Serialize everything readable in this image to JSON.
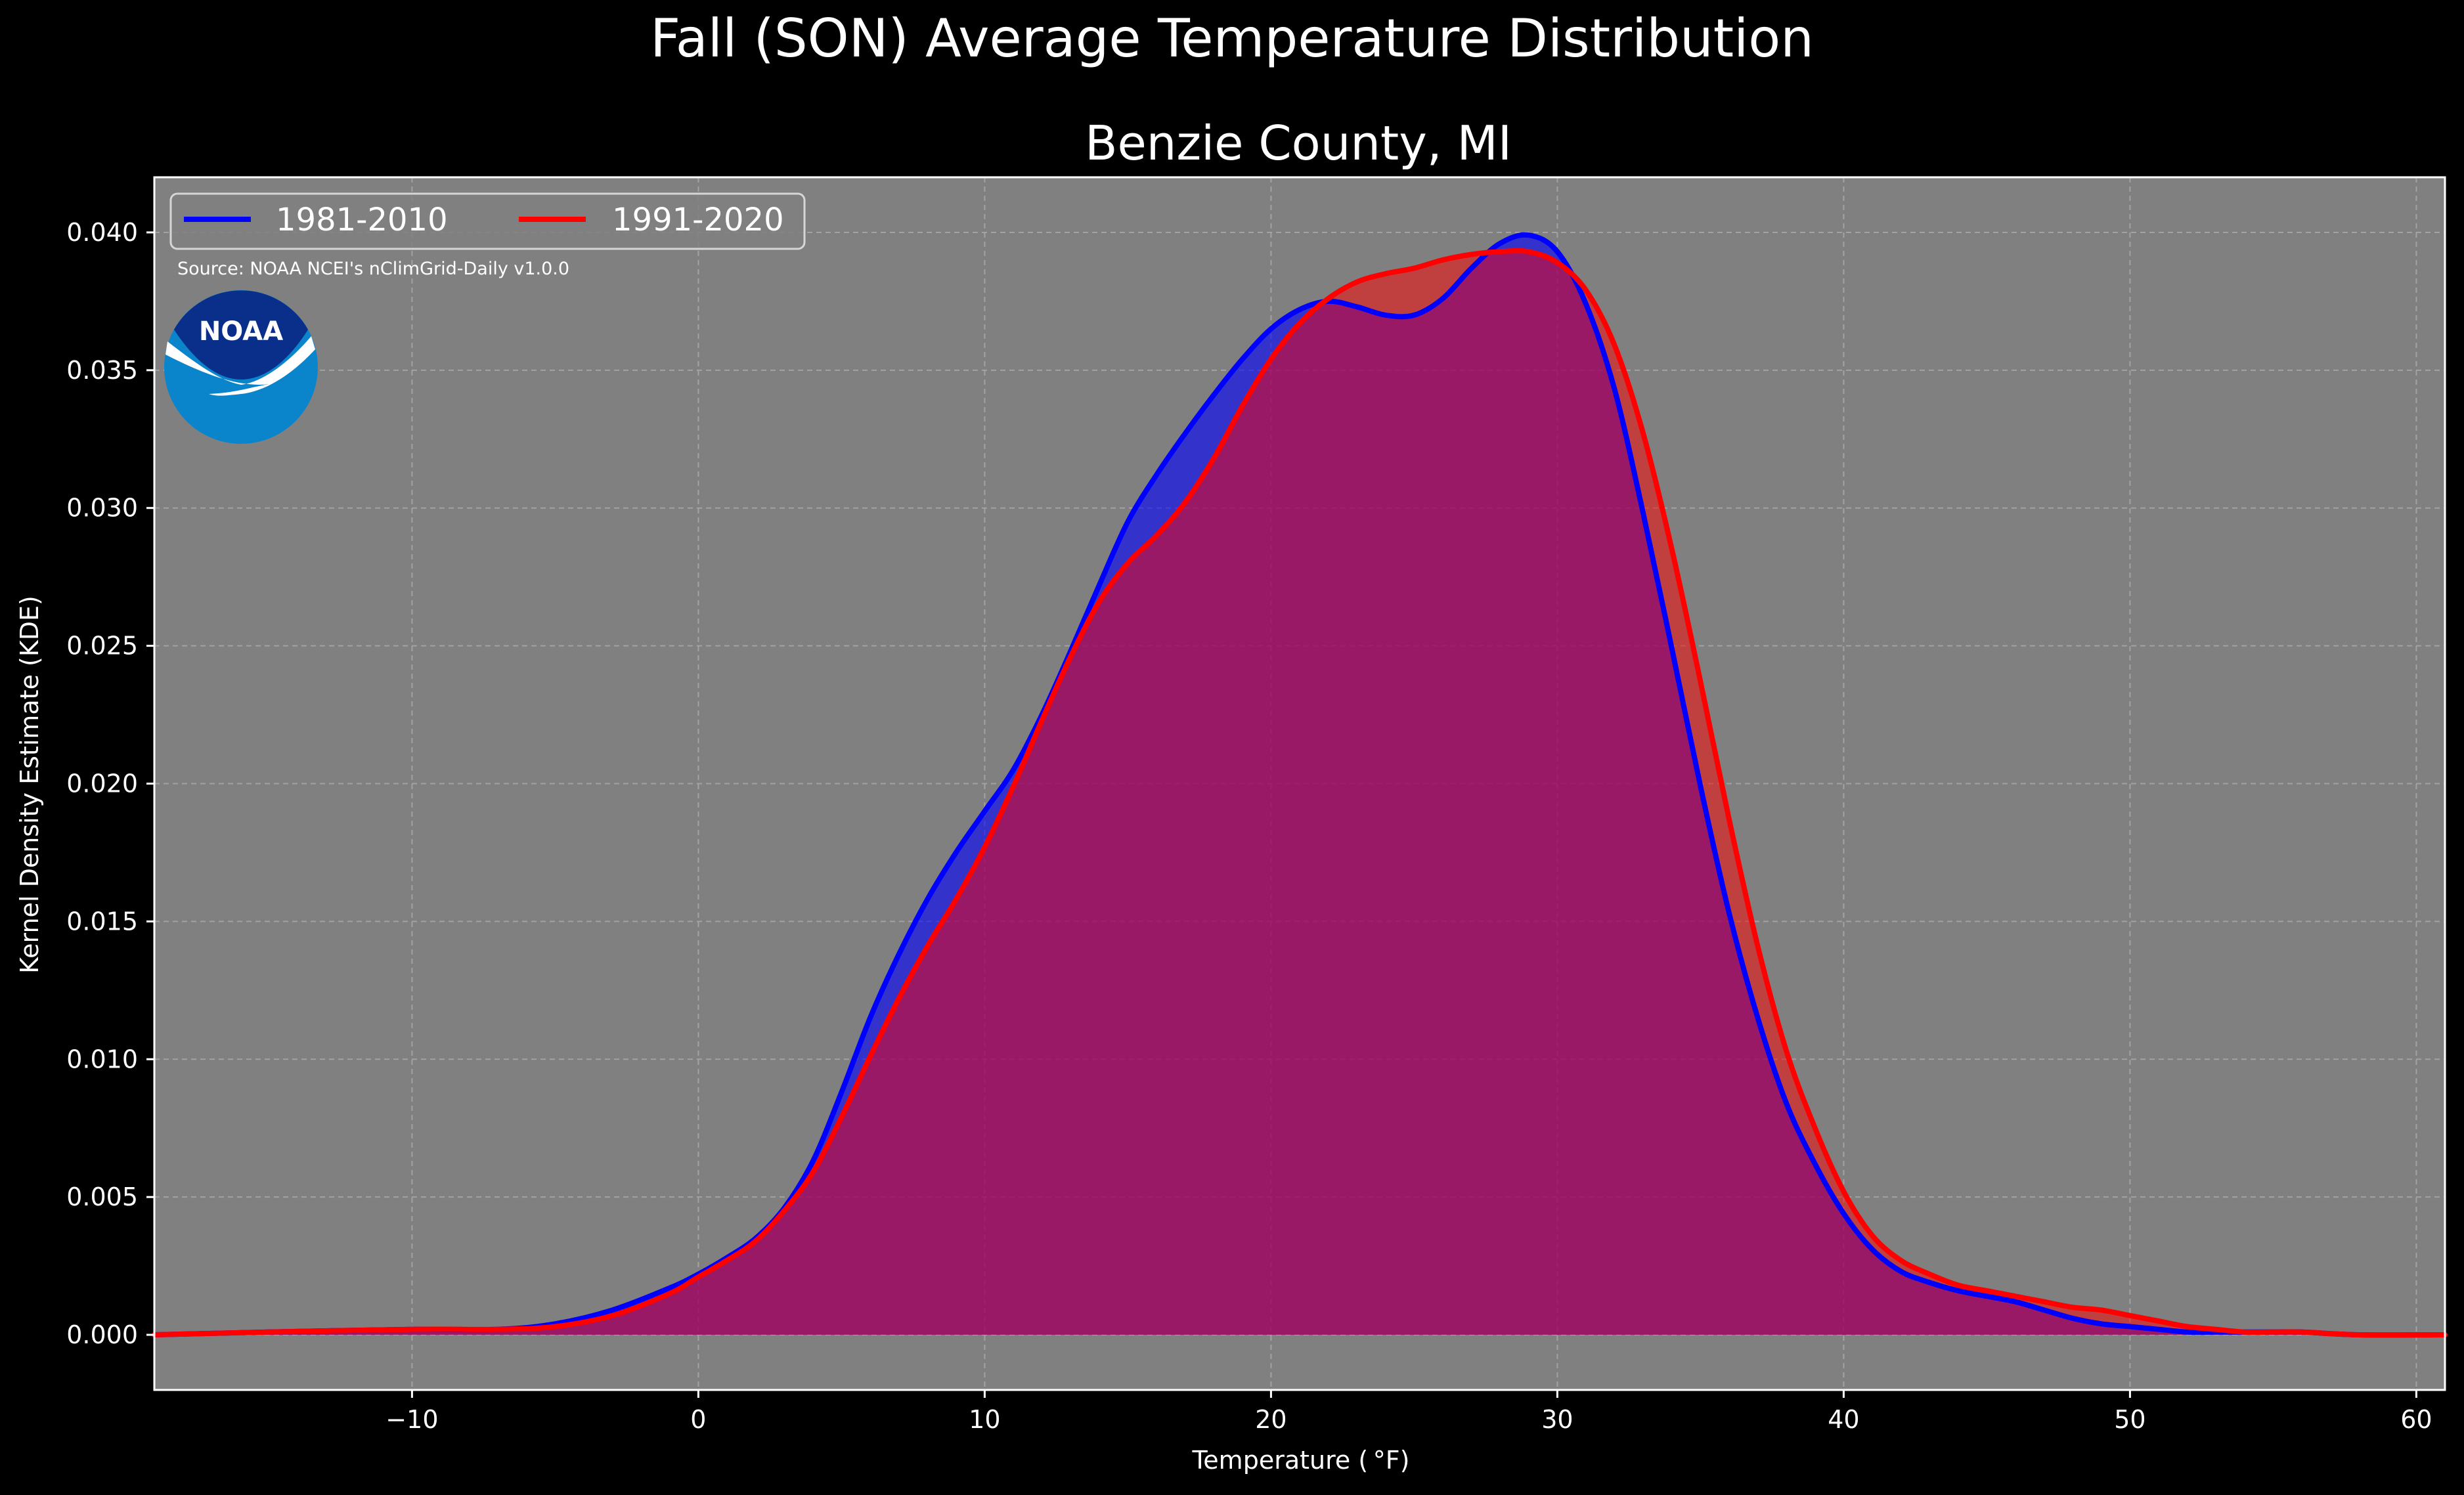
{
  "chart_data": {
    "type": "area",
    "suptitle": "Fall (SON) Average Temperature Distribution",
    "title": "Benzie County, MI",
    "xlabel": "Temperature ($^\\circ$F)",
    "xlabel_display": "Temperature ( °F)",
    "ylabel": "Kernel Density Estimate (KDE)",
    "xlim": [
      -19,
      61
    ],
    "ylim": [
      -0.002,
      0.042
    ],
    "x_ticks": [
      -10,
      0,
      10,
      20,
      30,
      40,
      50,
      60
    ],
    "x_tick_labels": [
      "−10",
      "0",
      "10",
      "20",
      "30",
      "40",
      "50",
      "60"
    ],
    "y_ticks": [
      0.0,
      0.005,
      0.01,
      0.015,
      0.02,
      0.025,
      0.03,
      0.035,
      0.04
    ],
    "y_tick_labels": [
      "0.000",
      "0.005",
      "0.010",
      "0.015",
      "0.020",
      "0.025",
      "0.030",
      "0.035",
      "0.040"
    ],
    "grid": true,
    "legend_position": "top-left",
    "source_note": "Source: NOAA NCEI's nClimGrid-Daily v1.0.0",
    "logo_text": "NOAA",
    "colors": {
      "figure_background": "#000000",
      "plot_background": "#808080",
      "series_1981_2010": "#0000ff",
      "series_1991_2020": "#ff0000",
      "overlap_fill": "#9e1f5f",
      "noaa_dark_blue": "#0a2f8a",
      "noaa_light_blue": "#0a85cc"
    },
    "series": [
      {
        "name": "1981-2010",
        "color": "#0000ff",
        "x": [
          -19,
          -15,
          -10,
          -7,
          -5,
          -3,
          -1,
          0,
          1,
          2,
          3,
          4,
          5,
          6,
          7,
          8,
          9,
          10,
          11,
          12,
          13,
          14,
          15,
          16,
          17,
          18,
          19,
          20,
          21,
          22,
          23,
          24,
          25,
          26,
          27,
          28,
          29,
          30,
          31,
          32,
          33,
          34,
          35,
          36,
          37,
          38,
          39,
          40,
          41,
          42,
          43,
          44,
          45,
          46,
          47,
          48,
          49,
          50,
          51,
          52,
          53,
          54,
          55,
          56,
          58,
          61
        ],
        "y": [
          0.0,
          0.0001,
          0.0002,
          0.0002,
          0.0004,
          0.0009,
          0.0017,
          0.0022,
          0.0028,
          0.0035,
          0.0046,
          0.0063,
          0.0088,
          0.0115,
          0.0138,
          0.0158,
          0.0175,
          0.019,
          0.0205,
          0.0225,
          0.0248,
          0.0272,
          0.0295,
          0.0312,
          0.0327,
          0.0341,
          0.0354,
          0.0365,
          0.0372,
          0.0375,
          0.0373,
          0.037,
          0.037,
          0.0376,
          0.0387,
          0.0396,
          0.0399,
          0.0393,
          0.0374,
          0.0343,
          0.0298,
          0.0249,
          0.0199,
          0.0153,
          0.0115,
          0.0084,
          0.0062,
          0.0044,
          0.0031,
          0.0023,
          0.0019,
          0.0016,
          0.0014,
          0.0012,
          0.0009,
          0.0006,
          0.0004,
          0.0003,
          0.0002,
          0.0001,
          0.0001,
          0.0001,
          0.0001,
          0.0001,
          0.0,
          0.0
        ]
      },
      {
        "name": "1991-2020",
        "color": "#ff0000",
        "x": [
          -19,
          -15,
          -10,
          -7,
          -5,
          -3,
          -1,
          0,
          1,
          2,
          3,
          4,
          5,
          6,
          7,
          8,
          9,
          10,
          11,
          12,
          13,
          14,
          15,
          16,
          17,
          18,
          19,
          20,
          21,
          22,
          23,
          24,
          25,
          26,
          27,
          28,
          29,
          30,
          31,
          32,
          33,
          34,
          35,
          36,
          37,
          38,
          39,
          40,
          41,
          42,
          43,
          44,
          45,
          46,
          47,
          48,
          49,
          50,
          51,
          52,
          53,
          54,
          55,
          56,
          58,
          61
        ],
        "y": [
          0.0,
          0.0001,
          0.0002,
          0.0002,
          0.0003,
          0.0007,
          0.0015,
          0.0021,
          0.0027,
          0.0034,
          0.0045,
          0.0059,
          0.0079,
          0.0101,
          0.0122,
          0.0141,
          0.0158,
          0.0177,
          0.0199,
          0.0223,
          0.0246,
          0.0266,
          0.028,
          0.029,
          0.0302,
          0.0318,
          0.0337,
          0.0354,
          0.0367,
          0.0376,
          0.0382,
          0.0385,
          0.0387,
          0.039,
          0.0392,
          0.0393,
          0.0393,
          0.0389,
          0.0379,
          0.0359,
          0.0327,
          0.0285,
          0.0237,
          0.0187,
          0.0141,
          0.0103,
          0.0075,
          0.0052,
          0.0036,
          0.0027,
          0.0022,
          0.0018,
          0.0016,
          0.0014,
          0.0012,
          0.001,
          0.0009,
          0.0007,
          0.0005,
          0.0003,
          0.0002,
          0.0001,
          0.0001,
          0.0001,
          0.0,
          0.0
        ]
      }
    ]
  }
}
